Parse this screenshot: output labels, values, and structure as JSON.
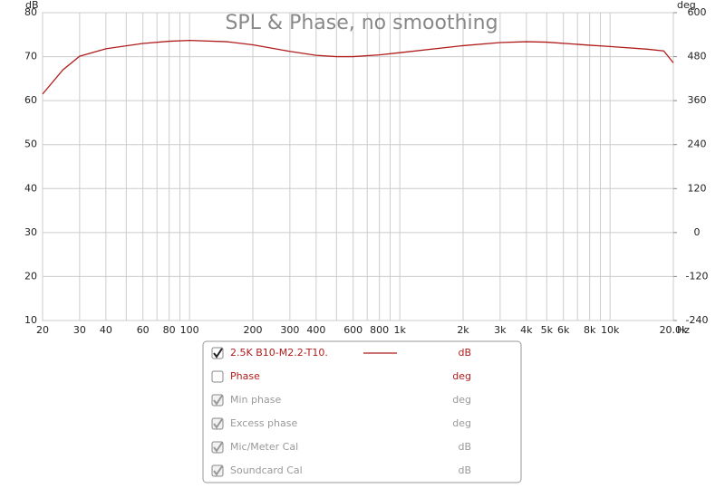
{
  "chart_data": {
    "type": "line",
    "title": "SPL & Phase, no smoothing",
    "y_unit": "dB",
    "y2_unit": "deg",
    "x_unit": "Hz",
    "xscale": "log",
    "grid": true,
    "xlim": [
      20,
      20000
    ],
    "ylim": [
      10,
      80
    ],
    "y2lim": [
      -240,
      600
    ],
    "xticks": [
      20,
      30,
      40,
      60,
      80,
      100,
      200,
      300,
      400,
      600,
      800,
      {
        "value": 1000,
        "label": "1k"
      },
      {
        "value": 2000,
        "label": "2k"
      },
      {
        "value": 3000,
        "label": "3k"
      },
      {
        "value": 4000,
        "label": "4k"
      },
      {
        "value": 5000,
        "label": "5k"
      },
      {
        "value": 6000,
        "label": "6k"
      },
      {
        "value": 8000,
        "label": "8k"
      },
      {
        "value": 10000,
        "label": "10k"
      },
      {
        "value": 20000,
        "label": "20.0k"
      }
    ],
    "xgrid": [
      50,
      70,
      90,
      500,
      700,
      900,
      7000,
      9000
    ],
    "yticks": [
      10,
      20,
      30,
      40,
      50,
      60,
      70,
      80
    ],
    "y2ticks": [
      -240,
      -120,
      0,
      120,
      240,
      360,
      480,
      600
    ],
    "x": [
      20,
      25,
      30,
      40,
      60,
      80,
      100,
      150,
      200,
      300,
      400,
      500,
      600,
      800,
      1000,
      2000,
      3000,
      4000,
      5000,
      8000,
      10000,
      15000,
      18000,
      20000
    ],
    "series": [
      {
        "name": "2.5K B10-M2.2-T10.",
        "color": "#b01c1c",
        "values": [
          61.5,
          67,
          70.1,
          71.8,
          73.0,
          73.5,
          73.7,
          73.4,
          72.7,
          71.2,
          70.3,
          70.0,
          70.0,
          70.4,
          70.9,
          72.5,
          73.2,
          73.4,
          73.3,
          72.6,
          72.3,
          71.7,
          71.3,
          68.6
        ]
      }
    ],
    "legend_rows": [
      {
        "label": "2.5K B10-M2.2-T10.",
        "unit": "dB",
        "checked": true,
        "enabled": true
      },
      {
        "label": "Phase",
        "unit": "deg",
        "checked": false,
        "enabled": true
      },
      {
        "label": "Min phase",
        "unit": "deg",
        "checked": true,
        "enabled": false
      },
      {
        "label": "Excess phase",
        "unit": "deg",
        "checked": true,
        "enabled": false
      },
      {
        "label": "Mic/Meter Cal",
        "unit": "dB",
        "checked": true,
        "enabled": false
      },
      {
        "label": "Soundcard Cal",
        "unit": "dB",
        "checked": true,
        "enabled": false
      }
    ]
  }
}
